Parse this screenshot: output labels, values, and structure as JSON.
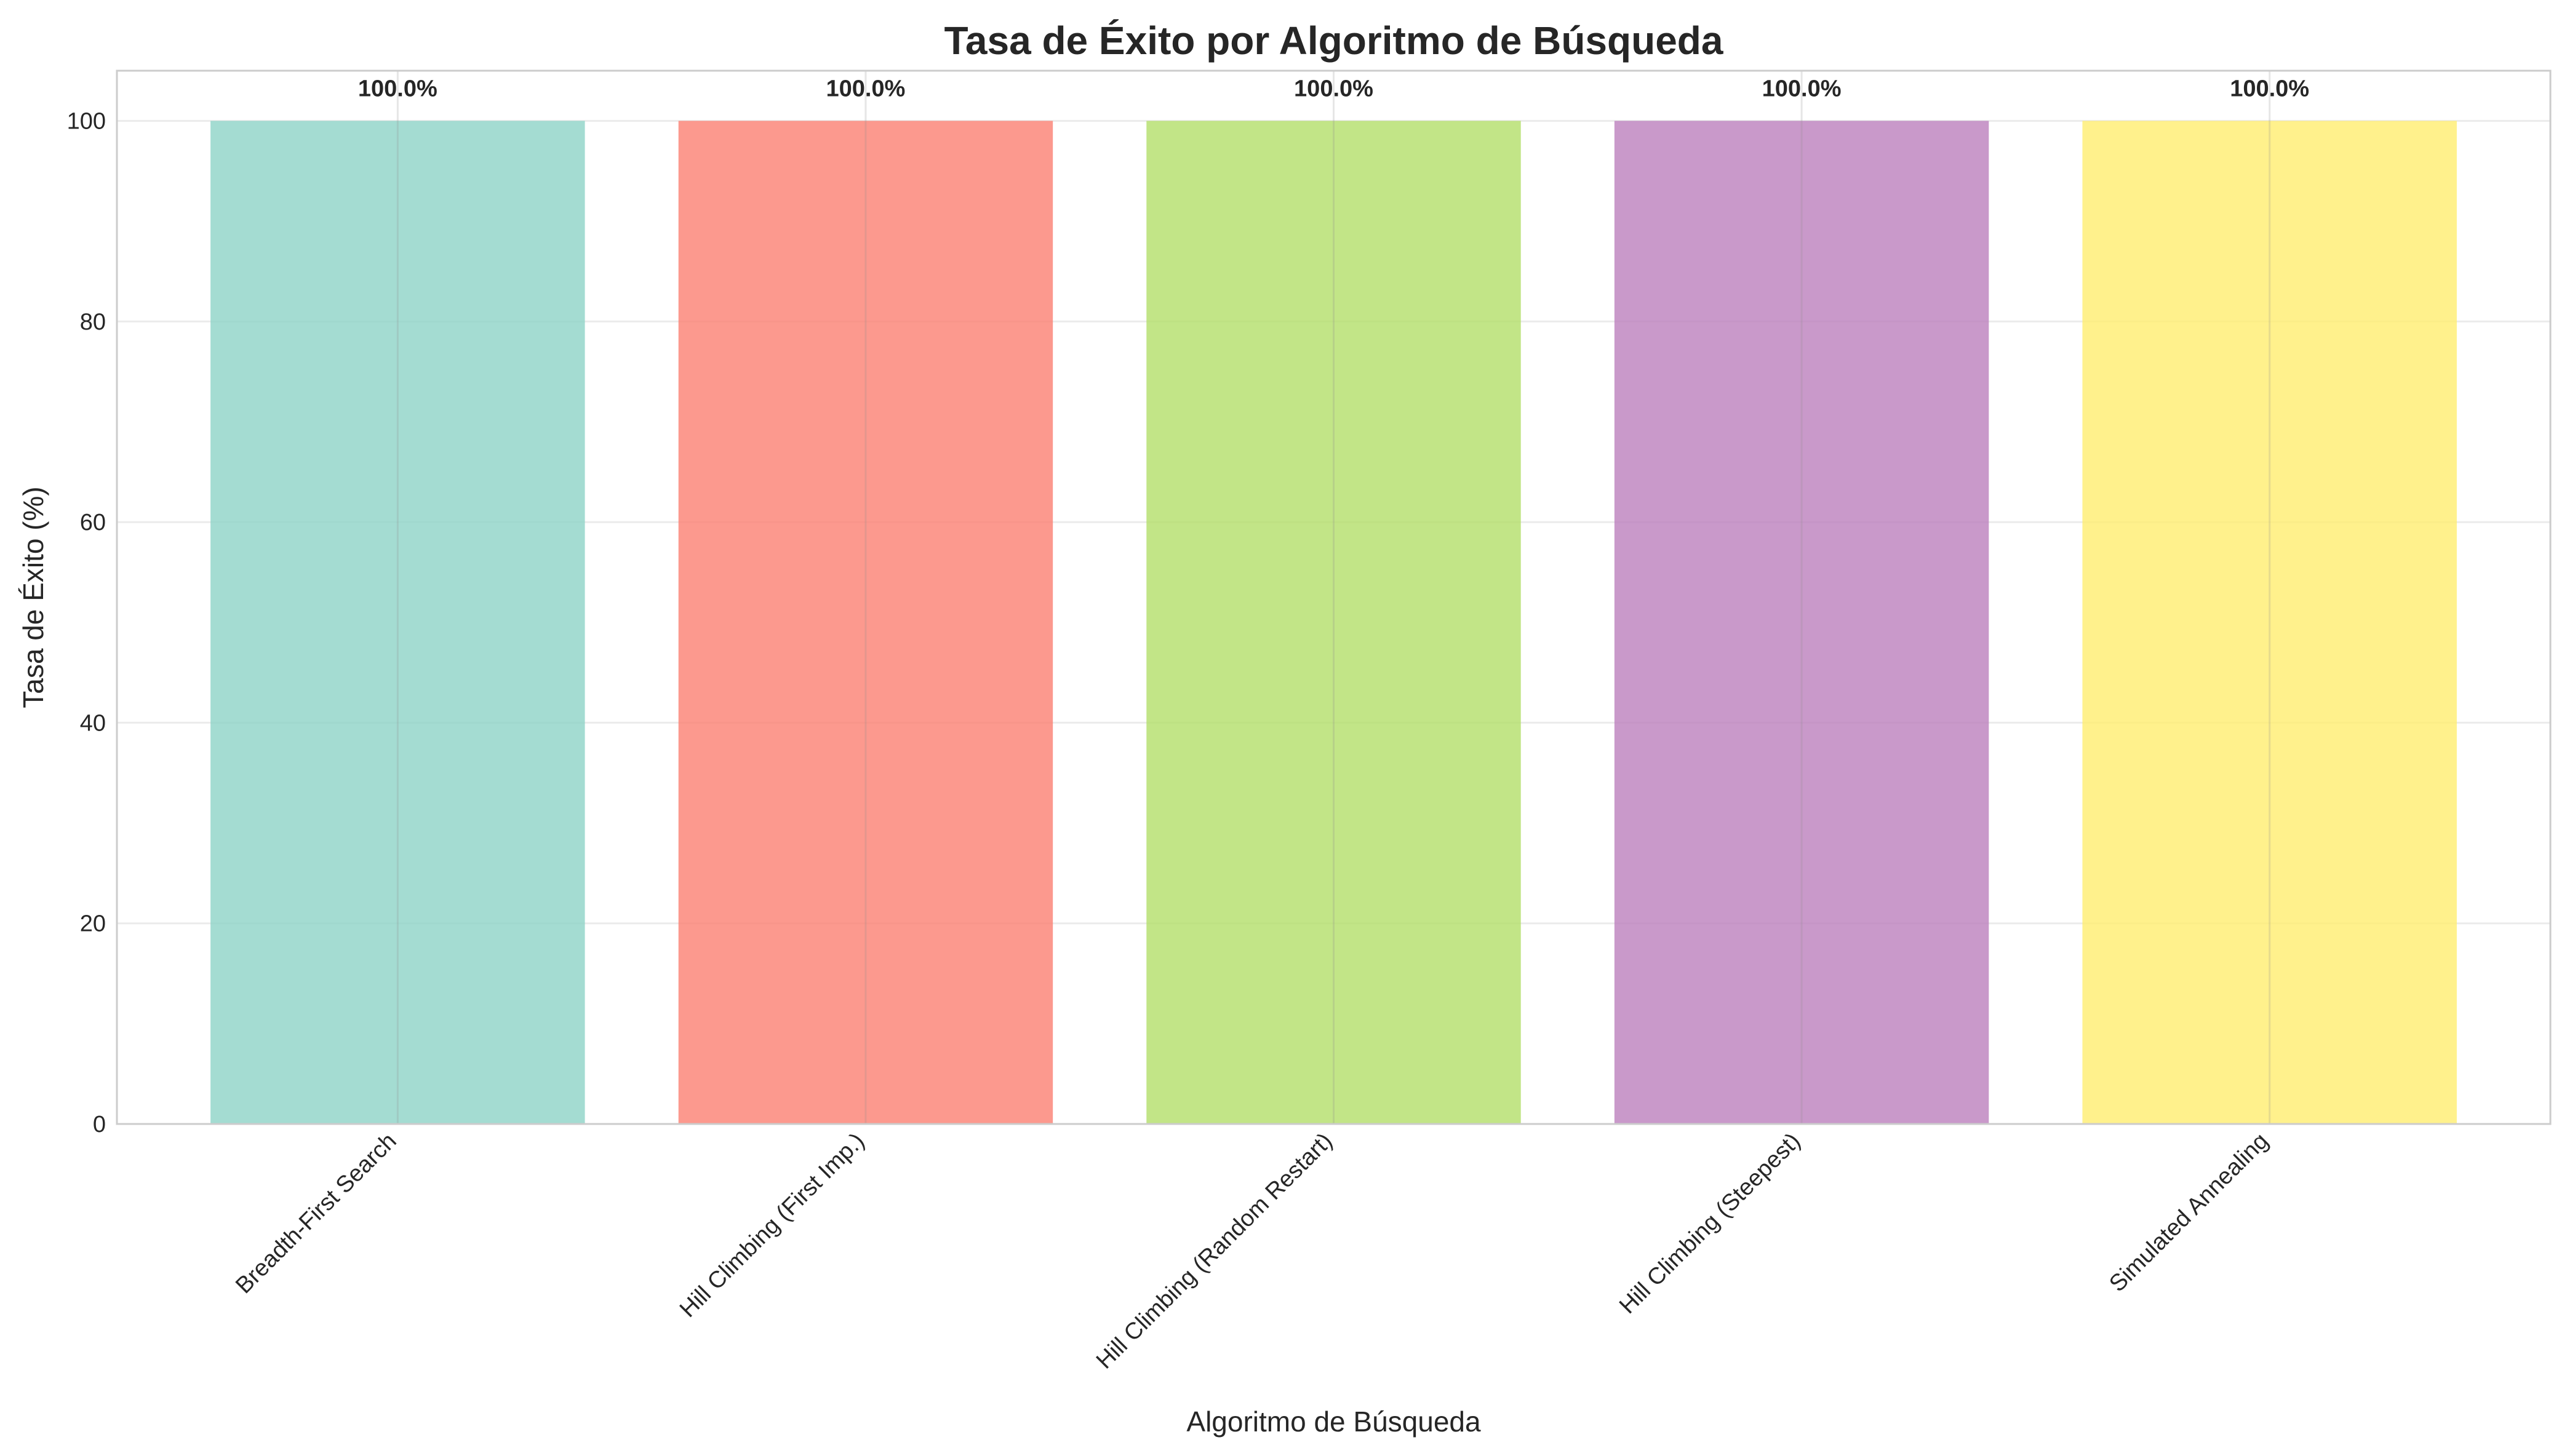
{
  "chart_data": {
    "type": "bar",
    "title": "Tasa de Éxito por Algoritmo de Búsqueda",
    "xlabel": "Algoritmo de Búsqueda",
    "ylabel": "Tasa de Éxito (%)",
    "categories": [
      "Breadth-First Search",
      "Hill Climbing (First Imp.)",
      "Hill Climbing (Random Restart)",
      "Hill Climbing (Steepest)",
      "Simulated Annealing"
    ],
    "values": [
      100,
      100,
      100,
      100,
      100
    ],
    "data_labels": [
      "100.0%",
      "100.0%",
      "100.0%",
      "100.0%",
      "100.0%"
    ],
    "colors": [
      "#8dd3c7",
      "#fb8072",
      "#b3de69",
      "#bc80bd",
      "#ffed6f"
    ],
    "ylim": [
      0,
      105
    ],
    "yticks": [
      0,
      20,
      40,
      60,
      80,
      100
    ],
    "grid": true,
    "legend": "none"
  }
}
